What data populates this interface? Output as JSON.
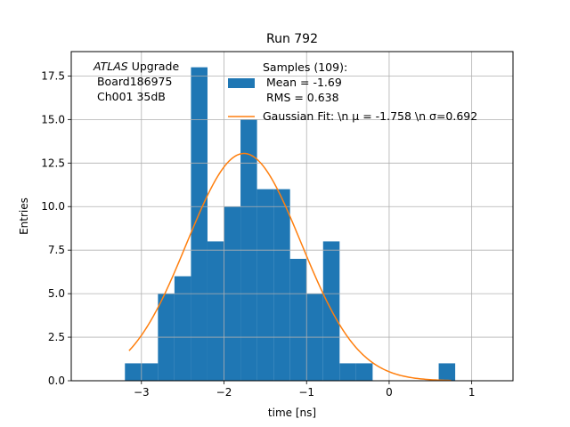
{
  "chart_data": {
    "type": "bar",
    "title": "Run 792",
    "xlabel": "time [ns]",
    "ylabel": "Entries",
    "xlim": [
      -3.85,
      1.5
    ],
    "ylim": [
      0,
      18.9
    ],
    "grid": true,
    "x_ticks": [
      -3,
      -2,
      -1,
      0,
      1
    ],
    "x_tick_labels": [
      "−3",
      "−2",
      "−1",
      "0",
      "1"
    ],
    "y_ticks": [
      0.0,
      2.5,
      5.0,
      7.5,
      10.0,
      12.5,
      15.0,
      17.5
    ],
    "y_tick_labels": [
      "0.0",
      "2.5",
      "5.0",
      "7.5",
      "10.0",
      "12.5",
      "15.0",
      "17.5"
    ],
    "bin_width": 0.2,
    "bin_edges_start": -3.2,
    "bin_counts": [
      1,
      1,
      5,
      6,
      18,
      8,
      10,
      15,
      11,
      11,
      7,
      5,
      8,
      1,
      1,
      0,
      0,
      0,
      0,
      1
    ],
    "histogram_color": "#1f77b4",
    "fit": {
      "type": "gaussian",
      "mu": -1.758,
      "sigma": 0.692,
      "amplitude": 13.05,
      "x_range": [
        -3.15,
        0.75
      ],
      "color": "#ff7f0e"
    },
    "annotation": {
      "line1_italic": "ATLAS",
      "line1_rest": " Upgrade",
      "line2": " Board186975",
      "line3": " Ch001 35dB"
    },
    "legend": {
      "position": "top-right",
      "hist_line1": "Samples (109):",
      "hist_line2": " Mean = -1.69",
      "hist_line3": " RMS = 0.638",
      "fit_label": "Gaussian Fit: \\n μ = -1.758 \\n σ=0.692"
    }
  }
}
